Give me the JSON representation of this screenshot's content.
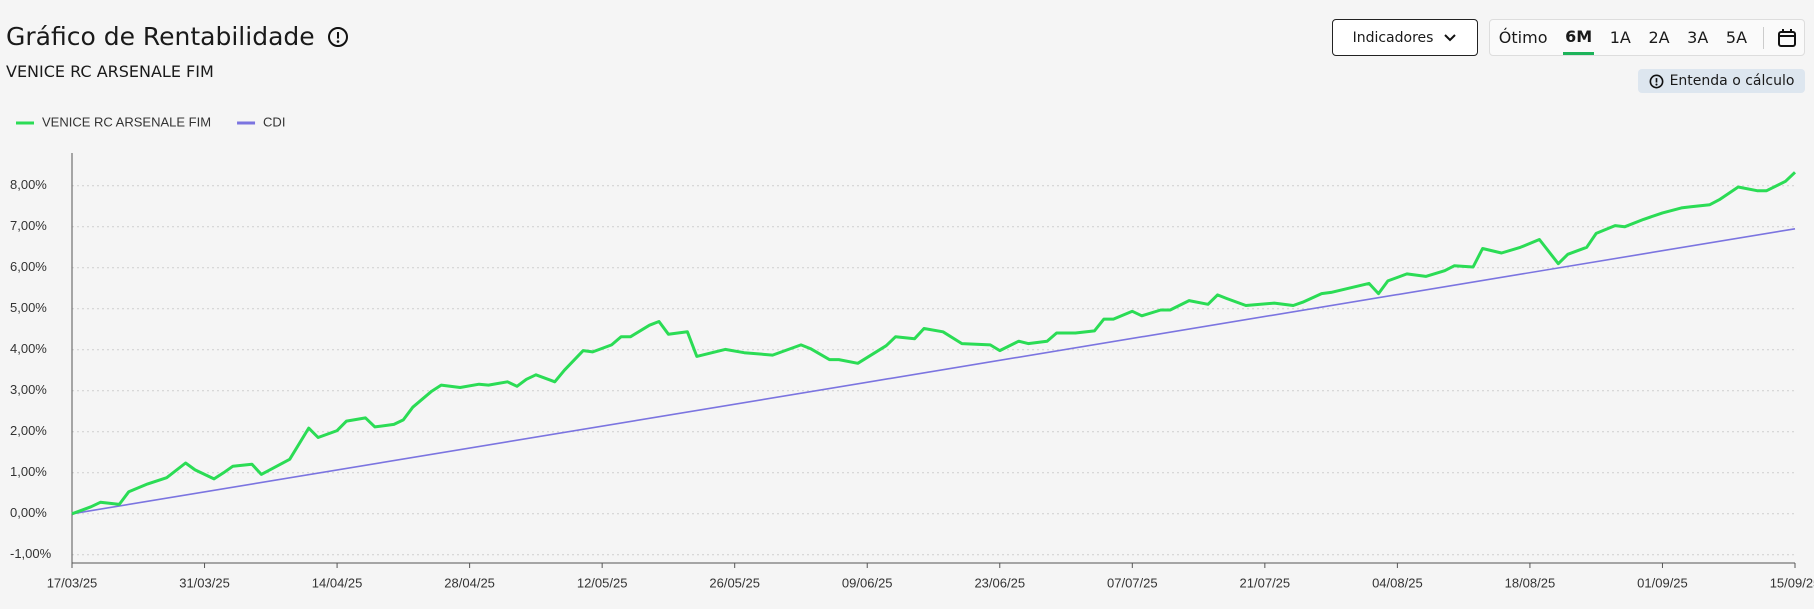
{
  "header": {
    "title": "Gráfico de Rentabilidade",
    "subtitle": "VENICE RC ARSENALE FIM"
  },
  "controls": {
    "indicators": "Indicadores",
    "periods": [
      "Ótimo",
      "6M",
      "1A",
      "2A",
      "3A",
      "5A"
    ],
    "help": "Entenda o cálculo"
  },
  "chart_data": {
    "type": "line",
    "xlim": [
      "17/03/25",
      "15/09/25"
    ],
    "xticks": [
      "17/03/25",
      "31/03/25",
      "14/04/25",
      "28/04/25",
      "12/05/25",
      "26/05/25",
      "09/06/25",
      "23/06/25",
      "07/07/25",
      "21/07/25",
      "04/08/25",
      "18/08/25",
      "01/09/25",
      "15/09/25"
    ],
    "ylim": [
      -1.2,
      8.8
    ],
    "yticks": [
      {
        "value": -1,
        "label": "-1,00%"
      },
      {
        "value": 0,
        "label": "0,00%"
      },
      {
        "value": 1,
        "label": "1,00%"
      },
      {
        "value": 2,
        "label": "2,00%"
      },
      {
        "value": 3,
        "label": "3,00%"
      },
      {
        "value": 4,
        "label": "4,00%"
      },
      {
        "value": 5,
        "label": "5,00%"
      },
      {
        "value": 6,
        "label": "6,00%"
      },
      {
        "value": 7,
        "label": "7,00%"
      },
      {
        "value": 8,
        "label": "8,00%"
      }
    ],
    "grid": true,
    "series": [
      {
        "name": "VENICE RC ARSENALE FIM",
        "color": "#2bdc55",
        "x": [
          "17/03/25",
          "19/03/25",
          "20/03/25",
          "22/03/25",
          "23/03/25",
          "25/03/25",
          "27/03/25",
          "29/03/25",
          "30/03/25",
          "01/04/25",
          "02/04/25",
          "03/04/25",
          "05/04/25",
          "06/04/25",
          "09/04/25",
          "11/04/25",
          "12/04/25",
          "14/04/25",
          "15/04/25",
          "17/04/25",
          "18/04/25",
          "20/04/25",
          "21/04/25",
          "22/04/25",
          "24/04/25",
          "25/04/25",
          "27/04/25",
          "29/04/25",
          "30/04/25",
          "02/05/25",
          "03/05/25",
          "04/05/25",
          "05/05/25",
          "07/05/25",
          "08/05/25",
          "10/05/25",
          "11/05/25",
          "13/05/25",
          "14/05/25",
          "15/05/25",
          "17/05/25",
          "18/05/25",
          "19/05/25",
          "21/05/25",
          "22/05/25",
          "25/05/25",
          "27/05/25",
          "30/05/25",
          "02/06/25",
          "03/06/25",
          "05/06/25",
          "06/06/25",
          "08/06/25",
          "11/06/25",
          "12/06/25",
          "14/06/25",
          "15/06/25",
          "17/06/25",
          "19/06/25",
          "22/06/25",
          "23/06/25",
          "25/06/25",
          "26/06/25",
          "28/06/25",
          "29/06/25",
          "01/07/25",
          "03/07/25",
          "04/07/25",
          "05/07/25",
          "07/07/25",
          "08/07/25",
          "10/07/25",
          "11/07/25",
          "13/07/25",
          "15/07/25",
          "16/07/25",
          "17/07/25",
          "19/07/25",
          "22/07/25",
          "24/07/25",
          "25/07/25",
          "27/07/25",
          "28/07/25",
          "30/07/25",
          "01/08/25",
          "02/08/25",
          "03/08/25",
          "05/08/25",
          "07/08/25",
          "09/08/25",
          "10/08/25",
          "12/08/25",
          "13/08/25",
          "15/08/25",
          "17/08/25",
          "19/08/25",
          "21/08/25",
          "22/08/25",
          "24/08/25",
          "25/08/25",
          "27/08/25",
          "28/08/25",
          "30/08/25",
          "01/09/25",
          "03/09/25",
          "04/09/25",
          "06/09/25",
          "07/09/25",
          "09/09/25",
          "11/09/25",
          "12/09/25",
          "14/09/25",
          "15/09/25"
        ],
        "values": [
          0.0,
          0.17,
          0.28,
          0.23,
          0.54,
          0.73,
          0.88,
          1.24,
          1.07,
          0.85,
          1.0,
          1.16,
          1.21,
          0.96,
          1.33,
          2.09,
          1.86,
          2.03,
          2.26,
          2.34,
          2.12,
          2.18,
          2.29,
          2.6,
          2.99,
          3.14,
          3.08,
          3.16,
          3.14,
          3.22,
          3.11,
          3.28,
          3.39,
          3.22,
          3.5,
          3.98,
          3.95,
          4.12,
          4.32,
          4.32,
          4.6,
          4.69,
          4.38,
          4.44,
          3.84,
          4.01,
          3.93,
          3.87,
          4.12,
          4.03,
          3.76,
          3.76,
          3.67,
          4.1,
          4.32,
          4.27,
          4.52,
          4.44,
          4.15,
          4.12,
          3.98,
          4.21,
          4.15,
          4.21,
          4.41,
          4.41,
          4.46,
          4.75,
          4.75,
          4.94,
          4.83,
          4.97,
          4.97,
          5.2,
          5.11,
          5.34,
          5.25,
          5.08,
          5.14,
          5.08,
          5.16,
          5.37,
          5.4,
          5.51,
          5.62,
          5.37,
          5.68,
          5.85,
          5.79,
          5.93,
          6.05,
          6.02,
          6.47,
          6.36,
          6.5,
          6.69,
          6.1,
          6.33,
          6.5,
          6.84,
          7.03,
          7.0,
          7.18,
          7.34,
          7.46,
          7.49,
          7.54,
          7.66,
          7.97,
          7.88,
          7.88,
          8.11,
          8.33
        ]
      },
      {
        "name": "CDI",
        "color": "#7b74e0",
        "x": [
          "17/03/25",
          "15/09/25"
        ],
        "values": [
          0.0,
          6.95
        ]
      }
    ]
  }
}
